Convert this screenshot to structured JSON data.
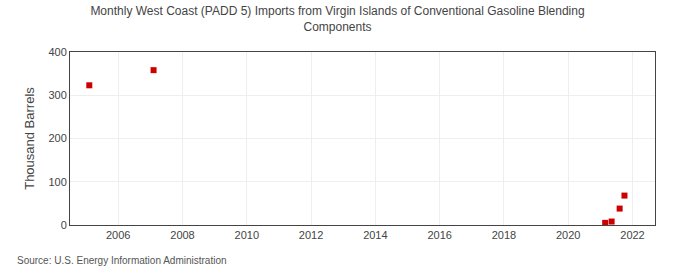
{
  "chart_data": {
    "type": "scatter",
    "title": "Monthly West Coast (PADD 5) Imports from Virgin Islands of Conventional Gasoline Blending\nComponents",
    "ylabel": "Thousand Barrels",
    "source": "Source: U.S. Energy Information Administration",
    "x": [
      2005.1,
      2007.1,
      2021.15,
      2021.35,
      2021.6,
      2021.75
    ],
    "values": [
      323,
      358,
      5,
      8,
      38,
      68
    ],
    "color": "#cc0000",
    "marker": "square",
    "xlim": [
      2004.5,
      2022.7
    ],
    "xticks": [
      2006,
      2008,
      2010,
      2012,
      2014,
      2016,
      2018,
      2020,
      2022
    ],
    "ylim": [
      0,
      400
    ],
    "yticks": [
      0,
      100,
      200,
      300,
      400
    ],
    "grid": true
  }
}
